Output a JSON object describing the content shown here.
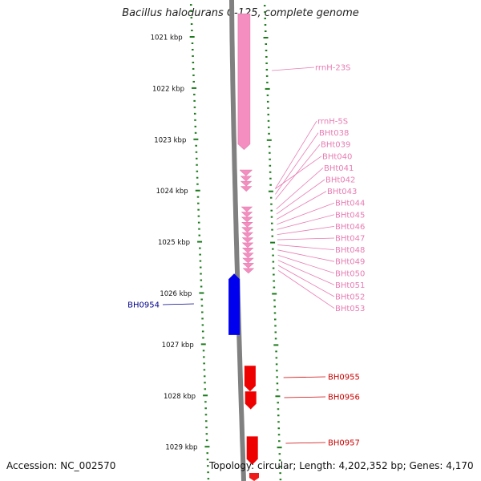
{
  "title": "Bacillus halodurans C-125, complete genome",
  "footer": {
    "accession_label": "Accession: NC_002570",
    "topology": "Topology: circular",
    "length": "Length: 4,202,352 bp",
    "genes": "Genes: 4,170",
    "separator": "; "
  },
  "colors": {
    "rna": "#f58ec0",
    "rna_label": "#e87cb3",
    "minus_gene": "#0000ee",
    "minus_label": "#00008b",
    "plus_gene": "#ee0000",
    "plus_label": "#cc0000",
    "tick": "#1a7a1a",
    "backbone": "#808080"
  },
  "scale": {
    "ticks": [
      {
        "kbp": 1021,
        "label": "1021 kbp"
      },
      {
        "kbp": 1022,
        "label": "1022 kbp"
      },
      {
        "kbp": 1023,
        "label": "1023 kbp"
      },
      {
        "kbp": 1024,
        "label": "1024 kbp"
      },
      {
        "kbp": 1025,
        "label": "1025 kbp"
      },
      {
        "kbp": 1026,
        "label": "1026 kbp"
      },
      {
        "kbp": 1027,
        "label": "1027 kbp"
      },
      {
        "kbp": 1028,
        "label": "1028 kbp"
      },
      {
        "kbp": 1029,
        "label": "1029 kbp"
      }
    ]
  },
  "features": [
    {
      "name": "rrnH-23S",
      "type": "rRNA",
      "strand": "+",
      "start_kbp": 1020.55,
      "end_kbp": 1023.2
    },
    {
      "name": "rrnH-5S",
      "type": "rRNA",
      "strand": "+",
      "start_kbp": 1023.6,
      "end_kbp": 1023.71
    },
    {
      "name": "BHt038",
      "type": "tRNA",
      "strand": "+",
      "start_kbp": 1023.72,
      "end_kbp": 1023.8
    },
    {
      "name": "BHt039",
      "type": "tRNA",
      "strand": "+",
      "start_kbp": 1023.82,
      "end_kbp": 1023.9
    },
    {
      "name": "BHt040",
      "type": "tRNA",
      "strand": "+",
      "start_kbp": 1023.92,
      "end_kbp": 1024.0
    },
    {
      "name": "BHt041",
      "type": "tRNA",
      "strand": "+",
      "start_kbp": 1024.32,
      "end_kbp": 1024.4
    },
    {
      "name": "BHt042",
      "type": "tRNA",
      "strand": "+",
      "start_kbp": 1024.42,
      "end_kbp": 1024.5
    },
    {
      "name": "BHt043",
      "type": "tRNA",
      "strand": "+",
      "start_kbp": 1024.52,
      "end_kbp": 1024.6
    },
    {
      "name": "BHt044",
      "type": "tRNA",
      "strand": "+",
      "start_kbp": 1024.62,
      "end_kbp": 1024.7
    },
    {
      "name": "BHt045",
      "type": "tRNA",
      "strand": "+",
      "start_kbp": 1024.72,
      "end_kbp": 1024.8
    },
    {
      "name": "BHt046",
      "type": "tRNA",
      "strand": "+",
      "start_kbp": 1024.82,
      "end_kbp": 1024.9
    },
    {
      "name": "BHt047",
      "type": "tRNA",
      "strand": "+",
      "start_kbp": 1024.92,
      "end_kbp": 1025.0
    },
    {
      "name": "BHt048",
      "type": "tRNA",
      "strand": "+",
      "start_kbp": 1025.02,
      "end_kbp": 1025.1
    },
    {
      "name": "BHt049",
      "type": "tRNA",
      "strand": "+",
      "start_kbp": 1025.12,
      "end_kbp": 1025.2
    },
    {
      "name": "BHt050",
      "type": "tRNA",
      "strand": "+",
      "start_kbp": 1025.22,
      "end_kbp": 1025.3
    },
    {
      "name": "BHt051",
      "type": "tRNA",
      "strand": "+",
      "start_kbp": 1025.32,
      "end_kbp": 1025.4
    },
    {
      "name": "BHt052",
      "type": "tRNA",
      "strand": "+",
      "start_kbp": 1025.42,
      "end_kbp": 1025.5
    },
    {
      "name": "BHt053",
      "type": "tRNA",
      "strand": "+",
      "start_kbp": 1025.52,
      "end_kbp": 1025.6
    },
    {
      "name": "BH0954",
      "type": "gene",
      "strand": "-",
      "start_kbp": 1025.62,
      "end_kbp": 1026.82
    },
    {
      "name": "BH0955",
      "type": "gene",
      "strand": "+",
      "start_kbp": 1027.42,
      "end_kbp": 1027.92
    },
    {
      "name": "BH0956",
      "type": "gene",
      "strand": "+",
      "start_kbp": 1027.92,
      "end_kbp": 1028.27
    },
    {
      "name": "BH0957",
      "type": "gene",
      "strand": "+",
      "start_kbp": 1028.8,
      "end_kbp": 1029.35
    }
  ]
}
